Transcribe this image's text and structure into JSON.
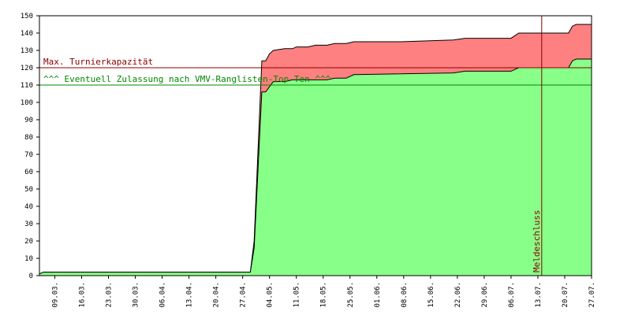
{
  "chart_data": {
    "type": "area",
    "title": "",
    "xlabel": "",
    "ylabel": "",
    "ylim": [
      0,
      150
    ],
    "y_ticks": [
      0,
      10,
      20,
      30,
      40,
      50,
      60,
      70,
      80,
      90,
      100,
      110,
      120,
      130,
      140,
      150
    ],
    "x_range": [
      "2025-03-05",
      "2025-07-27"
    ],
    "x_tick_labels": [
      "09.03.",
      "16.03.",
      "23.03.",
      "30.03.",
      "06.04.",
      "13.04.",
      "20.04.",
      "27.04.",
      "04.05.",
      "11.05.",
      "18.05.",
      "25.05.",
      "01.06.",
      "08.06.",
      "15.06.",
      "22.06.",
      "29.06.",
      "06.07.",
      "13.07.",
      "20.07.",
      "27.07."
    ],
    "grid": false,
    "legend": "none",
    "series": [
      {
        "color": "#ff8080",
        "points": [
          [
            "03-05",
            1
          ],
          [
            "03-06",
            2
          ],
          [
            "04-29",
            2
          ],
          [
            "04-30",
            20
          ],
          [
            "05-02",
            124
          ],
          [
            "05-03",
            124
          ],
          [
            "05-04",
            128
          ],
          [
            "05-05",
            130
          ],
          [
            "05-08",
            131
          ],
          [
            "05-10",
            131
          ],
          [
            "05-11",
            132
          ],
          [
            "05-14",
            132
          ],
          [
            "05-16",
            133
          ],
          [
            "05-19",
            133
          ],
          [
            "05-21",
            134
          ],
          [
            "05-24",
            134
          ],
          [
            "05-26",
            135
          ],
          [
            "06-07",
            135
          ],
          [
            "06-21",
            136
          ],
          [
            "06-24",
            137
          ],
          [
            "07-06",
            137
          ],
          [
            "07-08",
            140
          ],
          [
            "07-21",
            140
          ],
          [
            "07-22",
            144
          ],
          [
            "07-23",
            145
          ],
          [
            "07-27",
            145
          ]
        ]
      },
      {
        "color": "#88ff88",
        "points": [
          [
            "03-05",
            1
          ],
          [
            "03-06",
            2
          ],
          [
            "04-29",
            2
          ],
          [
            "04-30",
            16
          ],
          [
            "05-02",
            106
          ],
          [
            "05-03",
            106
          ],
          [
            "05-04",
            109
          ],
          [
            "05-05",
            112
          ],
          [
            "05-08",
            112
          ],
          [
            "05-10",
            113
          ],
          [
            "05-19",
            113
          ],
          [
            "05-21",
            114
          ],
          [
            "05-24",
            114
          ],
          [
            "05-26",
            116
          ],
          [
            "06-21",
            117
          ],
          [
            "06-24",
            118
          ],
          [
            "07-06",
            118
          ],
          [
            "07-08",
            120
          ],
          [
            "07-21",
            120
          ],
          [
            "07-22",
            124
          ],
          [
            "07-23",
            125
          ],
          [
            "07-27",
            125
          ]
        ]
      }
    ],
    "reference_lines": [
      {
        "y": 120,
        "label": "Max. Turnierkapazität",
        "color": "#880000"
      },
      {
        "y": 110,
        "label": "^^^ Eventuell Zulassung nach VMV-Ranglisten-Top-Ten ^^^",
        "color": "#008800"
      }
    ],
    "vertical_marker": {
      "x": "07-14",
      "label": "Meldeschluss",
      "color": "#880000"
    }
  }
}
